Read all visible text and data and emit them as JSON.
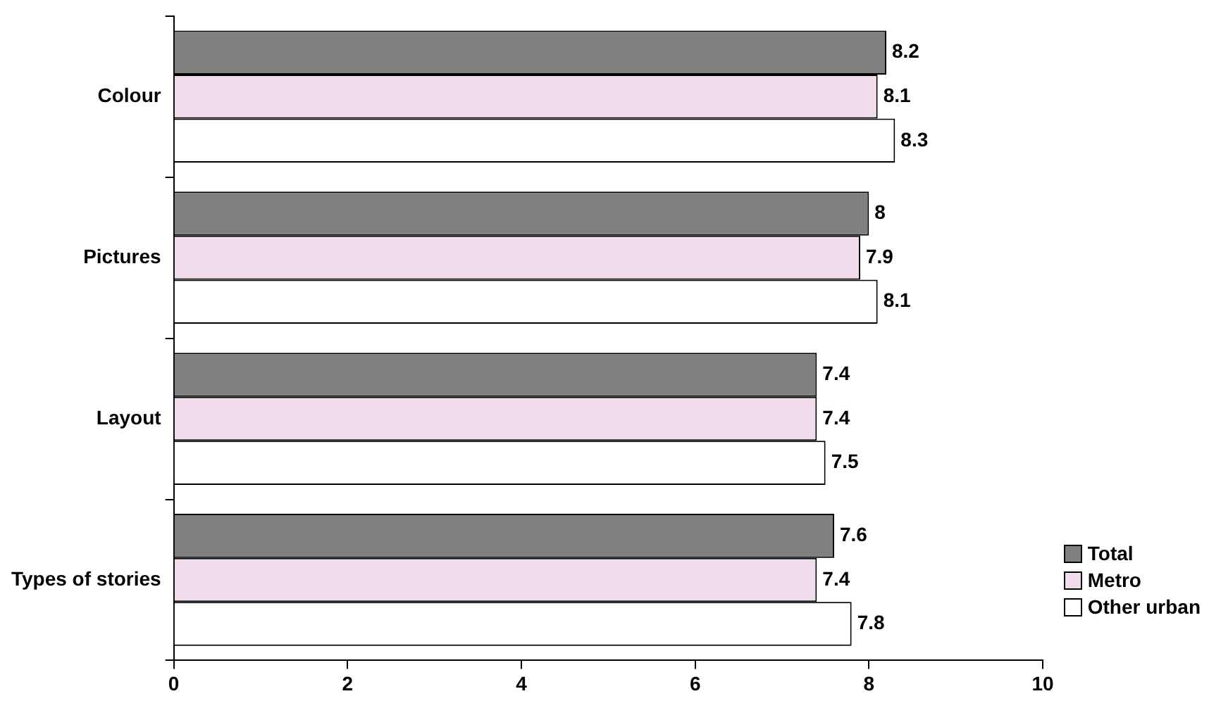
{
  "chart_data": {
    "type": "bar",
    "orientation": "horizontal",
    "categories": [
      "Colour",
      "Pictures",
      "Layout",
      "Types of stories"
    ],
    "series": [
      {
        "name": "Total",
        "color": "#808080",
        "values": [
          8.2,
          8,
          7.4,
          7.6
        ]
      },
      {
        "name": "Metro",
        "color": "#f0dcea",
        "values": [
          8.1,
          7.9,
          7.4,
          7.4
        ]
      },
      {
        "name": "Other urban",
        "color": "#ffffff",
        "values": [
          8.3,
          8.1,
          7.5,
          7.8
        ]
      }
    ],
    "xlim": [
      0,
      10
    ],
    "xticks": [
      0,
      2,
      4,
      6,
      8,
      10
    ],
    "data_labels": true,
    "legend": "bottom right",
    "grid": false
  }
}
